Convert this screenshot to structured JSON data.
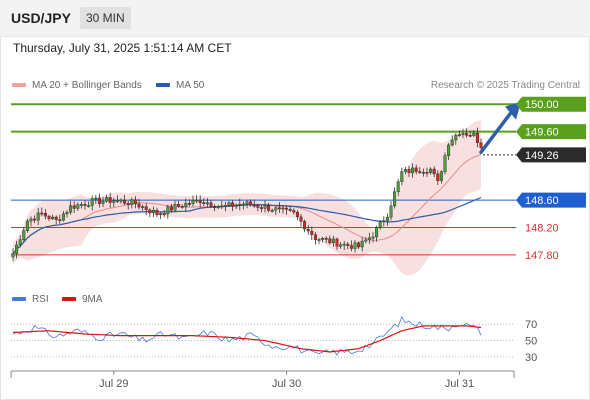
{
  "header": {
    "pair": "USD/JPY",
    "timeframe": "30 MIN"
  },
  "timestamp": "Thursday, July 31, 2025 1:51:14 AM CET",
  "legend": {
    "bollinger": {
      "label": "MA 20 + Bollinger Bands",
      "color": "#f0a0a0"
    },
    "ma50": {
      "label": "MA 50",
      "color": "#2a5aa8"
    },
    "rsi": {
      "label": "RSI",
      "color": "#4a78d8"
    },
    "rsi_ma": {
      "label": "9MA",
      "color": "#e01010"
    }
  },
  "credit": "Research © 2025 Trading Central",
  "chart_data": [
    {
      "type": "candlestick",
      "ylim": [
        147.58,
        150.12
      ],
      "x_tick_labels": [
        {
          "label": "Jul 29",
          "index": 28
        },
        {
          "label": "Jul 30",
          "index": 76
        },
        {
          "label": "Jul 31",
          "index": 124
        }
      ],
      "price_levels": [
        {
          "value": 150.0,
          "label": "150.00",
          "color": "#5aa01e",
          "style": "tag"
        },
        {
          "value": 149.6,
          "label": "149.60",
          "color": "#5aa01e",
          "style": "tag"
        },
        {
          "value": 149.26,
          "label": "149.26",
          "color": "#2b2b2b",
          "style": "tag"
        },
        {
          "value": 148.6,
          "label": "148.60",
          "color": "#1f5fd0",
          "style": "tag"
        },
        {
          "value": 148.2,
          "label": "148.20",
          "color": "#e03030",
          "style": "text"
        },
        {
          "value": 147.8,
          "label": "147.80",
          "color": "#e03030",
          "style": "text"
        }
      ],
      "anchors": [
        [
          0,
          147.82
        ],
        [
          4,
          148.3
        ],
        [
          8,
          148.4
        ],
        [
          12,
          148.3
        ],
        [
          16,
          148.5
        ],
        [
          22,
          148.58
        ],
        [
          28,
          148.6
        ],
        [
          34,
          148.55
        ],
        [
          40,
          148.4
        ],
        [
          45,
          148.5
        ],
        [
          52,
          148.6
        ],
        [
          58,
          148.5
        ],
        [
          64,
          148.55
        ],
        [
          70,
          148.5
        ],
        [
          74,
          148.45
        ],
        [
          78,
          148.4
        ],
        [
          84,
          148.05
        ],
        [
          88,
          148.0
        ],
        [
          92,
          147.95
        ],
        [
          96,
          147.92
        ],
        [
          100,
          148.1
        ],
        [
          104,
          148.4
        ],
        [
          108,
          149.0
        ],
        [
          112,
          149.05
        ],
        [
          116,
          149.05
        ],
        [
          118,
          148.85
        ],
        [
          121,
          149.45
        ],
        [
          124,
          149.6
        ],
        [
          128,
          149.55
        ],
        [
          130,
          149.4
        ]
      ],
      "trend_arrow": {
        "from": [
          130,
          149.3
        ],
        "to": [
          140,
          149.98
        ]
      }
    },
    {
      "type": "line",
      "ylim": [
        20,
        85
      ],
      "yticks": [
        70,
        50,
        30
      ],
      "series": [
        {
          "name": "RSI",
          "anchors": [
            [
              0,
              58
            ],
            [
              6,
              66
            ],
            [
              12,
              55
            ],
            [
              18,
              62
            ],
            [
              24,
              54
            ],
            [
              30,
              58
            ],
            [
              36,
              50
            ],
            [
              42,
              58
            ],
            [
              48,
              52
            ],
            [
              54,
              60
            ],
            [
              60,
              50
            ],
            [
              66,
              56
            ],
            [
              72,
              44
            ],
            [
              78,
              42
            ],
            [
              84,
              32
            ],
            [
              88,
              36
            ],
            [
              94,
              36
            ],
            [
              100,
              46
            ],
            [
              104,
              60
            ],
            [
              108,
              75
            ],
            [
              112,
              70
            ],
            [
              116,
              68
            ],
            [
              120,
              64
            ],
            [
              124,
              72
            ],
            [
              128,
              66
            ],
            [
              130,
              60
            ]
          ]
        },
        {
          "name": "9MA",
          "anchors": [
            [
              0,
              60
            ],
            [
              10,
              62
            ],
            [
              20,
              58
            ],
            [
              30,
              56
            ],
            [
              40,
              56
            ],
            [
              50,
              56
            ],
            [
              60,
              54
            ],
            [
              70,
              50
            ],
            [
              80,
              40
            ],
            [
              88,
              36
            ],
            [
              96,
              40
            ],
            [
              102,
              50
            ],
            [
              108,
              62
            ],
            [
              114,
              68
            ],
            [
              120,
              68
            ],
            [
              126,
              68
            ],
            [
              130,
              66
            ]
          ]
        }
      ]
    }
  ]
}
